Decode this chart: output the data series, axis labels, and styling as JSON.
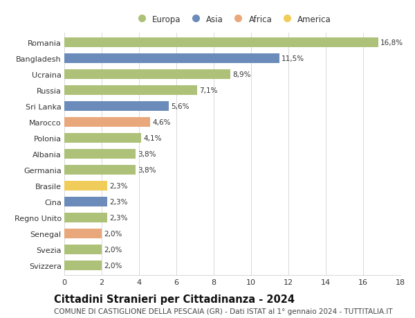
{
  "countries": [
    "Romania",
    "Bangladesh",
    "Ucraina",
    "Russia",
    "Sri Lanka",
    "Marocco",
    "Polonia",
    "Albania",
    "Germania",
    "Brasile",
    "Cina",
    "Regno Unito",
    "Senegal",
    "Svezia",
    "Svizzera"
  ],
  "values": [
    16.8,
    11.5,
    8.9,
    7.1,
    5.6,
    4.6,
    4.1,
    3.8,
    3.8,
    2.3,
    2.3,
    2.3,
    2.0,
    2.0,
    2.0
  ],
  "labels": [
    "16,8%",
    "11,5%",
    "8,9%",
    "7,1%",
    "5,6%",
    "4,6%",
    "4,1%",
    "3,8%",
    "3,8%",
    "2,3%",
    "2,3%",
    "2,3%",
    "2,0%",
    "2,0%",
    "2,0%"
  ],
  "continents": [
    "Europa",
    "Asia",
    "Europa",
    "Europa",
    "Asia",
    "Africa",
    "Europa",
    "Europa",
    "Europa",
    "America",
    "Asia",
    "Europa",
    "Africa",
    "Europa",
    "Europa"
  ],
  "continent_colors": {
    "Europa": "#adc178",
    "Asia": "#6b8cba",
    "Africa": "#e8a87c",
    "America": "#f0cc5a"
  },
  "legend_order": [
    "Europa",
    "Asia",
    "Africa",
    "America"
  ],
  "title": "Cittadini Stranieri per Cittadinanza - 2024",
  "subtitle": "COMUNE DI CASTIGLIONE DELLA PESCAIA (GR) - Dati ISTAT al 1° gennaio 2024 - TUTTITALIA.IT",
  "xlim": [
    0,
    18
  ],
  "xticks": [
    0,
    2,
    4,
    6,
    8,
    10,
    12,
    14,
    16,
    18
  ],
  "background_color": "#ffffff",
  "grid_color": "#d8d8d8",
  "bar_height": 0.6,
  "title_fontsize": 10.5,
  "subtitle_fontsize": 7.5,
  "label_fontsize": 7.5,
  "tick_fontsize": 8,
  "legend_fontsize": 8.5
}
